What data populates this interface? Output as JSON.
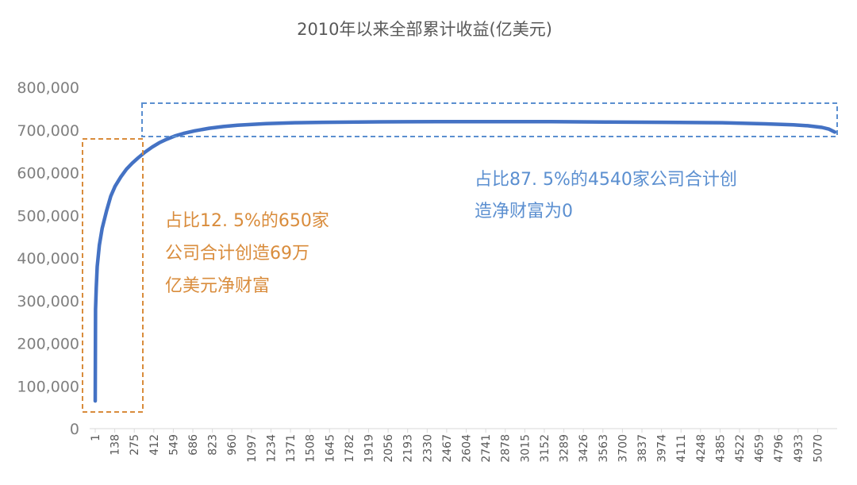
{
  "chart_data": {
    "type": "line",
    "title": "2010年以来全部累计收益(亿美元)",
    "xlabel": "",
    "ylabel": "",
    "ylim": [
      0,
      800000
    ],
    "xlim": [
      1,
      5190
    ],
    "yticks": [
      "0",
      "100,000",
      "200,000",
      "300,000",
      "400,000",
      "500,000",
      "600,000",
      "700,000",
      "800,000"
    ],
    "xticks": [
      1,
      138,
      275,
      412,
      549,
      686,
      823,
      960,
      1097,
      1234,
      1371,
      1508,
      1645,
      1782,
      1919,
      2056,
      2193,
      2330,
      2467,
      2604,
      2741,
      2878,
      3015,
      3152,
      3289,
      3426,
      3563,
      3700,
      3837,
      3974,
      4111,
      4248,
      4385,
      4522,
      4659,
      4796,
      4933,
      5070
    ],
    "grid": false,
    "series": [
      {
        "color": "#4472c4",
        "x": [
          1,
          3,
          8,
          15,
          30,
          50,
          80,
          110,
          140,
          180,
          220,
          260,
          300,
          350,
          400,
          450,
          500,
          560,
          620,
          700,
          800,
          900,
          1000,
          1200,
          1400,
          1600,
          2000,
          2400,
          2800,
          3200,
          3600,
          4000,
          4400,
          4700,
          4900,
          5000,
          5100,
          5150,
          5190
        ],
        "values": [
          65000,
          280000,
          330000,
          380000,
          430000,
          470000,
          510000,
          545000,
          568000,
          590000,
          608000,
          622000,
          634000,
          648000,
          660000,
          670000,
          678000,
          686000,
          692000,
          698000,
          704000,
          708000,
          711000,
          715000,
          717000,
          718000,
          719000,
          719500,
          719500,
          719500,
          718500,
          718000,
          717000,
          714500,
          712000,
          710000,
          706000,
          702000,
          695000
        ]
      }
    ],
    "annotations": [
      {
        "color": "#d98c3c",
        "lines": [
          "占比12. 5%的650家",
          "公司合计创造69万",
          "亿美元净财富"
        ]
      },
      {
        "color": "#5b8fd0",
        "lines": [
          "占比87. 5%的4540家公司合计创",
          "造净财富为0"
        ]
      }
    ]
  }
}
